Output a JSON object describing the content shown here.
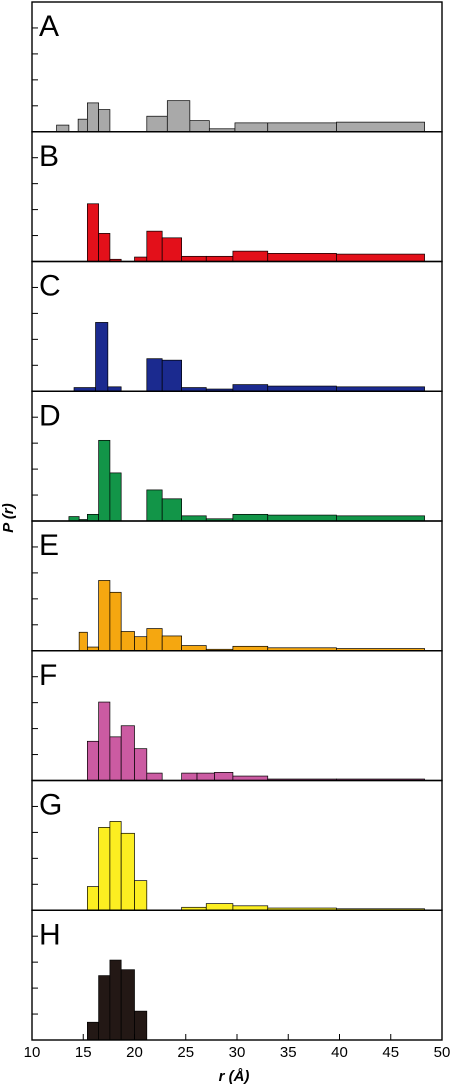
{
  "chart_data": {
    "type": "bar",
    "xlabel": "r (Å)",
    "ylabel": "P (r)",
    "xlim": [
      10,
      50
    ],
    "x_ticks": [
      10,
      15,
      20,
      25,
      30,
      35,
      40,
      45,
      50
    ],
    "panels": [
      {
        "label": "A",
        "color": "#a9a9a9",
        "bins": [
          {
            "x0": 12.4,
            "x1": 13.6,
            "value": 0.09
          },
          {
            "x0": 14.5,
            "x1": 15.4,
            "value": 0.17
          },
          {
            "x0": 15.4,
            "x1": 16.5,
            "value": 0.39
          },
          {
            "x0": 16.5,
            "x1": 17.6,
            "value": 0.3
          },
          {
            "x0": 21.2,
            "x1": 23.2,
            "value": 0.21
          },
          {
            "x0": 23.2,
            "x1": 25.4,
            "value": 0.42
          },
          {
            "x0": 25.4,
            "x1": 27.3,
            "value": 0.15
          },
          {
            "x0": 27.3,
            "x1": 29.8,
            "value": 0.04
          },
          {
            "x0": 29.8,
            "x1": 33.0,
            "value": 0.12
          },
          {
            "x0": 33.0,
            "x1": 39.7,
            "value": 0.12
          },
          {
            "x0": 39.7,
            "x1": 48.3,
            "value": 0.13
          }
        ]
      },
      {
        "label": "B",
        "color": "#e3101a",
        "bins": [
          {
            "x0": 15.4,
            "x1": 16.5,
            "value": 0.78
          },
          {
            "x0": 16.5,
            "x1": 17.6,
            "value": 0.38
          },
          {
            "x0": 17.6,
            "x1": 18.7,
            "value": 0.03
          },
          {
            "x0": 20.0,
            "x1": 21.2,
            "value": 0.06
          },
          {
            "x0": 21.2,
            "x1": 22.7,
            "value": 0.41
          },
          {
            "x0": 22.7,
            "x1": 24.6,
            "value": 0.32
          },
          {
            "x0": 24.6,
            "x1": 27.0,
            "value": 0.07
          },
          {
            "x0": 27.0,
            "x1": 29.6,
            "value": 0.07
          },
          {
            "x0": 29.6,
            "x1": 33.0,
            "value": 0.14
          },
          {
            "x0": 33.0,
            "x1": 39.7,
            "value": 0.11
          },
          {
            "x0": 39.7,
            "x1": 48.3,
            "value": 0.1
          }
        ]
      },
      {
        "label": "C",
        "color": "#1b2a8f",
        "bins": [
          {
            "x0": 14.1,
            "x1": 16.2,
            "value": 0.05
          },
          {
            "x0": 16.2,
            "x1": 17.4,
            "value": 0.93
          },
          {
            "x0": 17.4,
            "x1": 18.7,
            "value": 0.06
          },
          {
            "x0": 21.2,
            "x1": 22.7,
            "value": 0.44
          },
          {
            "x0": 22.7,
            "x1": 24.6,
            "value": 0.42
          },
          {
            "x0": 24.6,
            "x1": 27.0,
            "value": 0.05
          },
          {
            "x0": 27.0,
            "x1": 29.6,
            "value": 0.03
          },
          {
            "x0": 29.6,
            "x1": 33.0,
            "value": 0.09
          },
          {
            "x0": 33.0,
            "x1": 39.7,
            "value": 0.07
          },
          {
            "x0": 39.7,
            "x1": 48.3,
            "value": 0.06
          }
        ]
      },
      {
        "label": "D",
        "color": "#129548",
        "bins": [
          {
            "x0": 13.6,
            "x1": 14.6,
            "value": 0.06
          },
          {
            "x0": 14.6,
            "x1": 15.4,
            "value": 0.02
          },
          {
            "x0": 15.4,
            "x1": 16.5,
            "value": 0.09
          },
          {
            "x0": 16.5,
            "x1": 17.6,
            "value": 1.09
          },
          {
            "x0": 17.6,
            "x1": 18.7,
            "value": 0.65
          },
          {
            "x0": 21.2,
            "x1": 22.7,
            "value": 0.42
          },
          {
            "x0": 22.7,
            "x1": 24.6,
            "value": 0.3
          },
          {
            "x0": 24.6,
            "x1": 27.0,
            "value": 0.07
          },
          {
            "x0": 27.0,
            "x1": 29.6,
            "value": 0.03
          },
          {
            "x0": 29.6,
            "x1": 33.0,
            "value": 0.09
          },
          {
            "x0": 33.0,
            "x1": 39.7,
            "value": 0.08
          },
          {
            "x0": 39.7,
            "x1": 48.3,
            "value": 0.07
          }
        ]
      },
      {
        "label": "E",
        "color": "#f5a710",
        "bins": [
          {
            "x0": 14.6,
            "x1": 15.4,
            "value": 0.25
          },
          {
            "x0": 15.4,
            "x1": 16.5,
            "value": 0.05
          },
          {
            "x0": 16.5,
            "x1": 17.6,
            "value": 0.95
          },
          {
            "x0": 17.6,
            "x1": 18.7,
            "value": 0.79
          },
          {
            "x0": 18.7,
            "x1": 20.0,
            "value": 0.26
          },
          {
            "x0": 20.0,
            "x1": 21.2,
            "value": 0.19
          },
          {
            "x0": 21.2,
            "x1": 22.7,
            "value": 0.3
          },
          {
            "x0": 22.7,
            "x1": 24.6,
            "value": 0.2
          },
          {
            "x0": 24.6,
            "x1": 27.0,
            "value": 0.07
          },
          {
            "x0": 27.0,
            "x1": 29.6,
            "value": 0.02
          },
          {
            "x0": 29.6,
            "x1": 33.0,
            "value": 0.06
          },
          {
            "x0": 33.0,
            "x1": 39.7,
            "value": 0.04
          },
          {
            "x0": 39.7,
            "x1": 48.3,
            "value": 0.03
          }
        ]
      },
      {
        "label": "F",
        "color": "#cb5ba2",
        "bins": [
          {
            "x0": 15.4,
            "x1": 16.5,
            "value": 0.53
          },
          {
            "x0": 16.5,
            "x1": 17.6,
            "value": 1.06
          },
          {
            "x0": 17.6,
            "x1": 18.7,
            "value": 0.59
          },
          {
            "x0": 18.7,
            "x1": 20.0,
            "value": 0.74
          },
          {
            "x0": 20.0,
            "x1": 21.2,
            "value": 0.43
          },
          {
            "x0": 21.2,
            "x1": 22.7,
            "value": 0.1
          },
          {
            "x0": 24.6,
            "x1": 26.1,
            "value": 0.1
          },
          {
            "x0": 26.1,
            "x1": 27.8,
            "value": 0.1
          },
          {
            "x0": 27.8,
            "x1": 29.6,
            "value": 0.11
          },
          {
            "x0": 29.6,
            "x1": 33.0,
            "value": 0.06
          },
          {
            "x0": 33.0,
            "x1": 39.7,
            "value": 0.02
          },
          {
            "x0": 39.7,
            "x1": 48.3,
            "value": 0.02
          }
        ]
      },
      {
        "label": "G",
        "color": "#fcee21",
        "bins": [
          {
            "x0": 15.4,
            "x1": 16.5,
            "value": 0.32
          },
          {
            "x0": 16.5,
            "x1": 17.6,
            "value": 1.12
          },
          {
            "x0": 17.6,
            "x1": 18.7,
            "value": 1.2
          },
          {
            "x0": 18.7,
            "x1": 20.0,
            "value": 1.04
          },
          {
            "x0": 20.0,
            "x1": 21.2,
            "value": 0.4
          },
          {
            "x0": 24.6,
            "x1": 27.0,
            "value": 0.04
          },
          {
            "x0": 27.0,
            "x1": 29.6,
            "value": 0.09
          },
          {
            "x0": 29.6,
            "x1": 33.0,
            "value": 0.06
          },
          {
            "x0": 33.0,
            "x1": 39.7,
            "value": 0.03
          },
          {
            "x0": 39.7,
            "x1": 48.3,
            "value": 0.02
          }
        ]
      },
      {
        "label": "H",
        "color": "#231815",
        "bins": [
          {
            "x0": 15.4,
            "x1": 16.5,
            "value": 0.24
          },
          {
            "x0": 16.5,
            "x1": 17.6,
            "value": 0.87
          },
          {
            "x0": 17.6,
            "x1": 18.7,
            "value": 1.08
          },
          {
            "x0": 18.7,
            "x1": 20.0,
            "value": 0.95
          },
          {
            "x0": 20.0,
            "x1": 21.2,
            "value": 0.39
          }
        ]
      }
    ]
  }
}
